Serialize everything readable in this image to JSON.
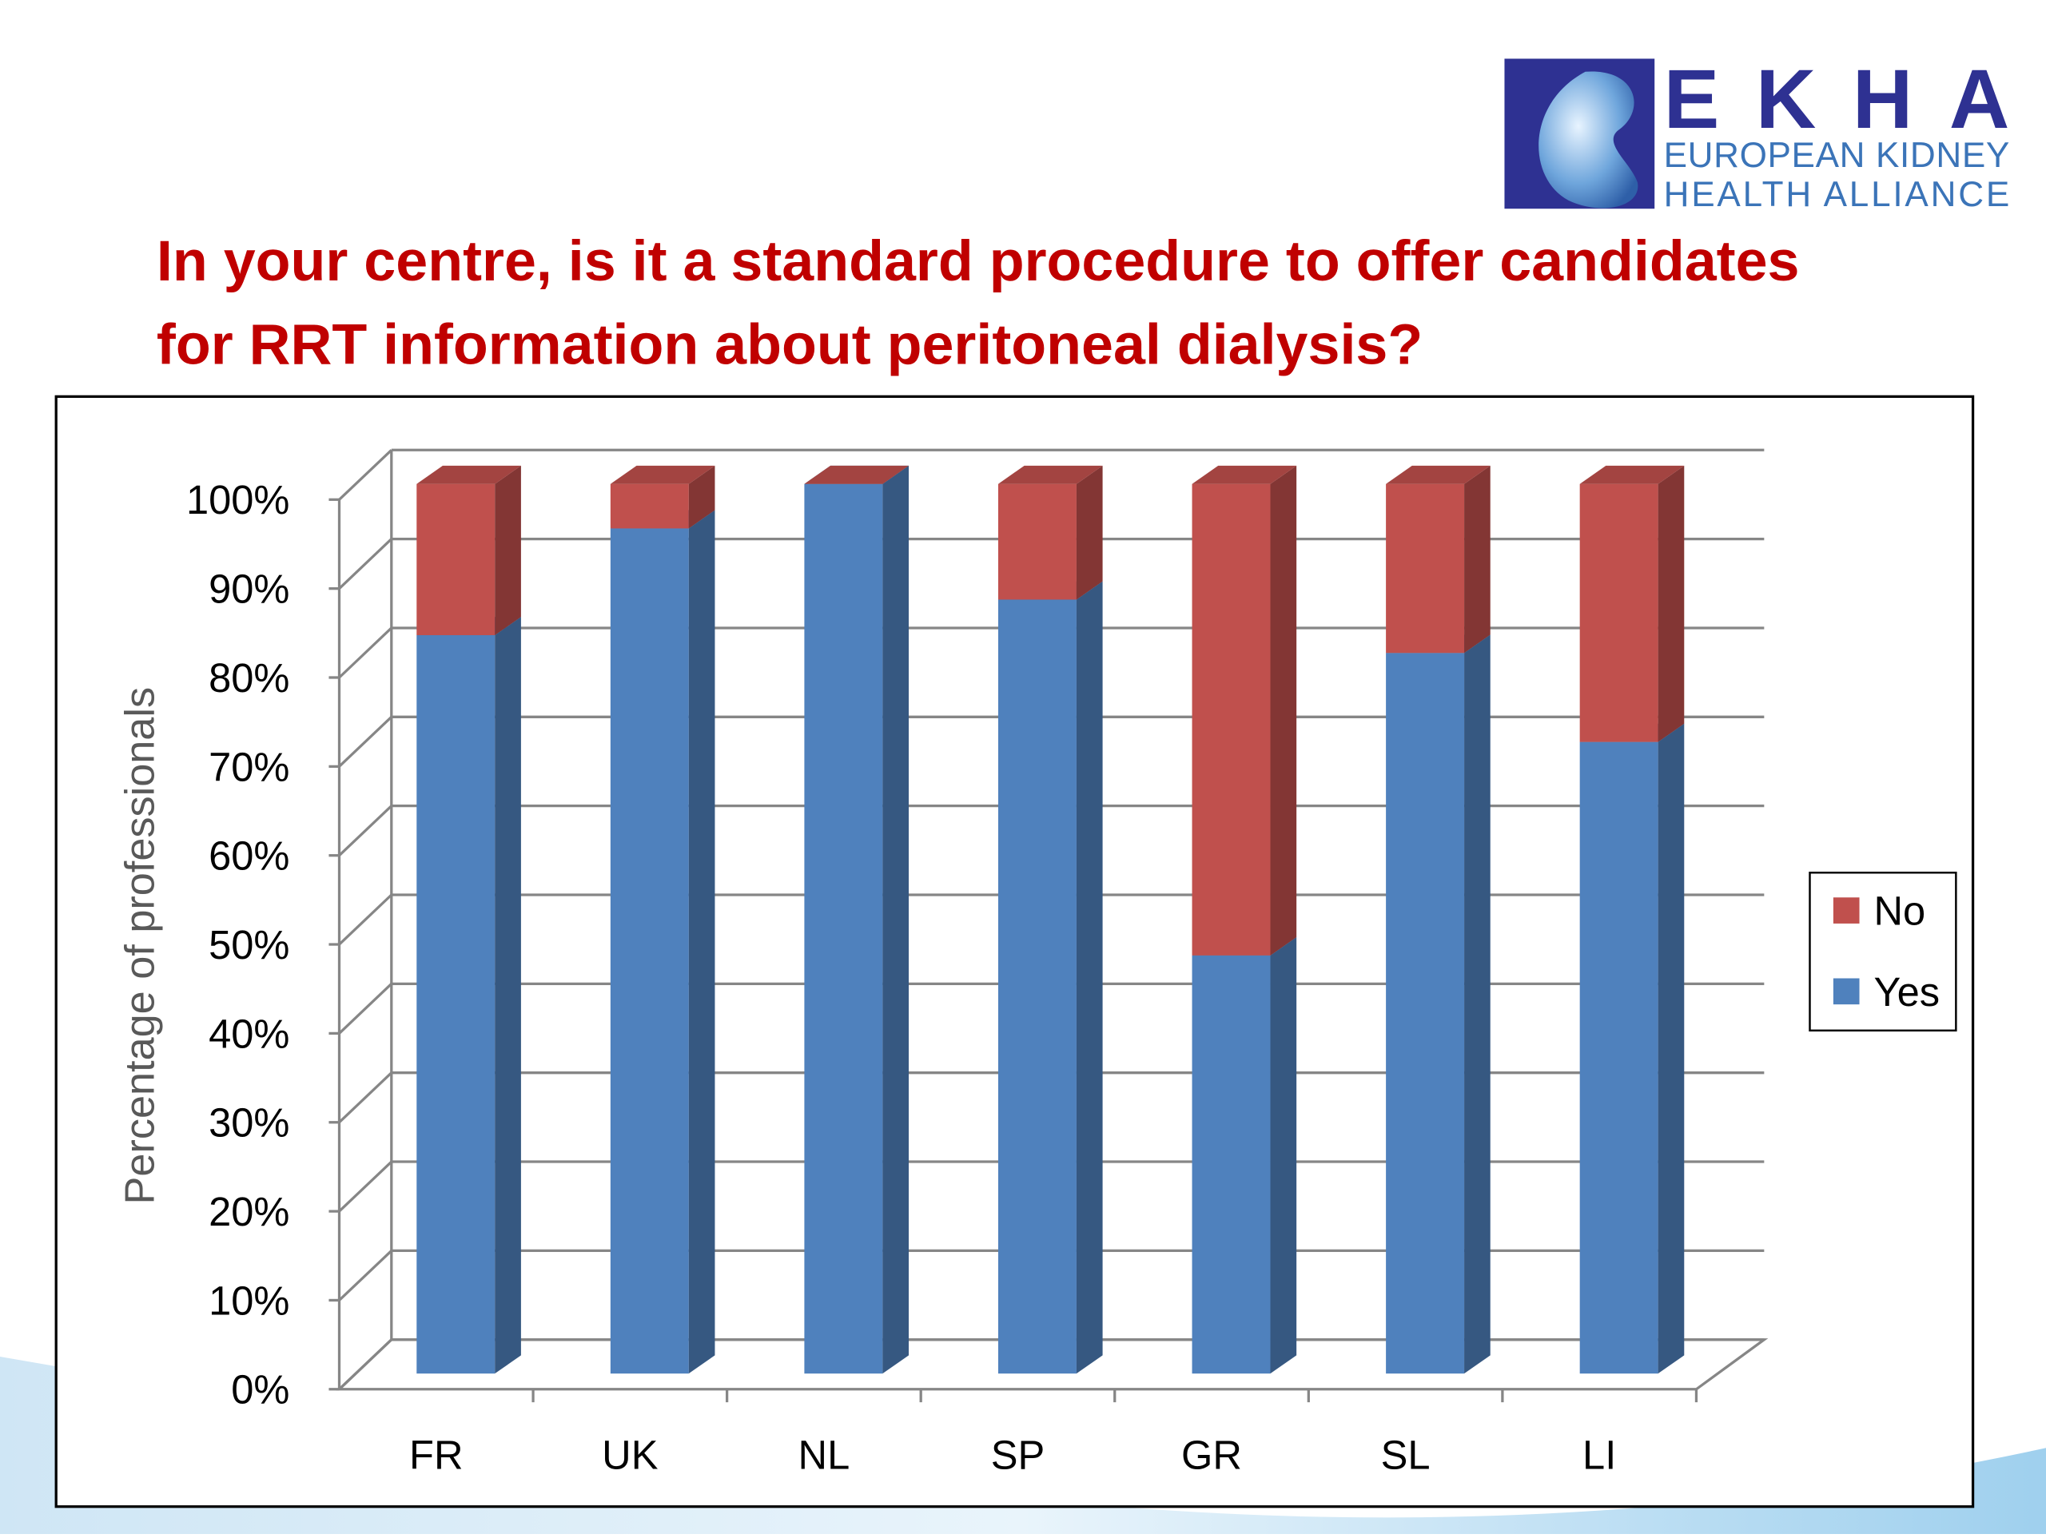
{
  "logo": {
    "name": "EKHA",
    "line1": "EUROPEAN KIDNEY",
    "line2": "HEALTH ALLIANCE"
  },
  "chart_data": {
    "type": "bar",
    "stacked": true,
    "title": "In your centre, is it a standard procedure to offer candidates for RRT information about peritoneal dialysis?",
    "y_label": "Percentage of professionals",
    "categories": [
      "FR",
      "UK",
      "NL",
      "SP",
      "GR",
      "SL",
      "LI"
    ],
    "series": [
      {
        "name": "Yes",
        "color": "#4f81bd",
        "values": [
          83,
          95,
          100,
          87,
          47,
          81,
          71
        ]
      },
      {
        "name": "No",
        "color": "#c0504d",
        "values": [
          17,
          5,
          0,
          13,
          53,
          19,
          29
        ]
      }
    ],
    "ylim": [
      0,
      100
    ],
    "yticks": [
      {
        "value": 0,
        "label": "0%"
      },
      {
        "value": 10,
        "label": "10%"
      },
      {
        "value": 20,
        "label": "20%"
      },
      {
        "value": 30,
        "label": "30%"
      },
      {
        "value": 40,
        "label": "40%"
      },
      {
        "value": 50,
        "label": "50%"
      },
      {
        "value": 60,
        "label": "60%"
      },
      {
        "value": 70,
        "label": "70%"
      },
      {
        "value": 80,
        "label": "80%"
      },
      {
        "value": 90,
        "label": "90%"
      },
      {
        "value": 100,
        "label": "100%"
      }
    ],
    "grid": true,
    "legend": "right"
  }
}
